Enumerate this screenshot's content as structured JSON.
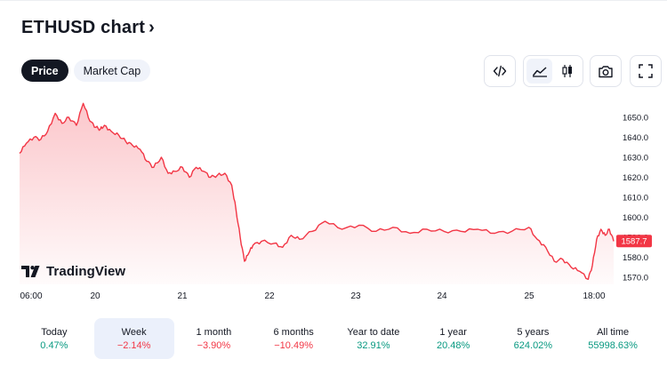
{
  "header": {
    "title": "ETHUSD chart",
    "chevron": "›"
  },
  "tabs": [
    {
      "label": "Price",
      "active": true
    },
    {
      "label": "Market Cap",
      "active": false
    }
  ],
  "toolbar": {
    "icons": [
      "embed-code-icon",
      "line-chart-icon",
      "candlestick-icon",
      "camera-icon",
      "fullscreen-icon"
    ],
    "selected_chart_style": "line-chart-icon"
  },
  "branding": {
    "logo_text": "TradingView"
  },
  "colors": {
    "line": "#f23645",
    "fill_top": "#f23645",
    "last_price_badge": "#f23645",
    "positive": "#089981",
    "negative": "#f23645",
    "active_period_bg": "#ebf0fb"
  },
  "chart_data": {
    "type": "area",
    "symbol": "ETHUSD",
    "x_tick_labels": [
      "06:00",
      "20",
      "21",
      "22",
      "23",
      "24",
      "25",
      "18:00"
    ],
    "y_tick_labels": [
      "1650.0",
      "1640.0",
      "1630.0",
      "1620.0",
      "1610.0",
      "1600.0",
      "1590.0",
      "1580.0",
      "1570.0"
    ],
    "y_range": [
      1566,
      1658
    ],
    "last_price": "1587.7",
    "grid": false,
    "x_days": [
      19.0,
      19.08,
      19.17,
      19.25,
      19.33,
      19.42,
      19.5,
      19.58,
      19.67,
      19.75,
      19.83,
      19.9,
      19.95,
      20.0,
      20.08,
      20.17,
      20.25,
      20.33,
      20.42,
      20.5,
      20.58,
      20.67,
      20.75,
      20.83,
      20.92,
      21.0,
      21.08,
      21.17,
      21.25,
      21.33,
      21.42,
      21.5,
      21.55,
      21.6,
      21.65,
      21.7,
      21.75,
      21.85,
      22.0,
      22.1,
      22.2,
      22.3,
      22.45,
      22.6,
      22.8,
      23.0,
      23.2,
      23.4,
      23.6,
      23.8,
      24.0,
      24.2,
      24.4,
      24.6,
      24.8,
      25.0,
      25.1,
      25.2,
      25.3,
      25.4,
      25.5,
      25.6,
      25.7,
      25.75,
      25.8,
      25.85,
      25.9,
      25.95,
      26.0
    ],
    "values": [
      1632,
      1637,
      1640,
      1639,
      1643,
      1652,
      1647,
      1650,
      1646,
      1657,
      1648,
      1645,
      1644,
      1646,
      1643,
      1641,
      1638,
      1636,
      1634,
      1628,
      1625,
      1630,
      1622,
      1623,
      1625,
      1620,
      1625,
      1623,
      1620,
      1621,
      1622,
      1616,
      1604,
      1590,
      1578,
      1582,
      1586,
      1588,
      1587,
      1585,
      1591,
      1589,
      1593,
      1598,
      1594,
      1596,
      1593,
      1595,
      1592,
      1594,
      1593,
      1593,
      1594,
      1592,
      1593,
      1595,
      1589,
      1585,
      1578,
      1579,
      1575,
      1573,
      1569,
      1576,
      1589,
      1594,
      1591,
      1594,
      1588
    ]
  },
  "periods": [
    {
      "label": "Today",
      "value": "0.47%",
      "trend": "pos",
      "active": false
    },
    {
      "label": "Week",
      "value": "−2.14%",
      "trend": "neg",
      "active": true
    },
    {
      "label": "1 month",
      "value": "−3.90%",
      "trend": "neg",
      "active": false
    },
    {
      "label": "6 months",
      "value": "−10.49%",
      "trend": "neg",
      "active": false
    },
    {
      "label": "Year to date",
      "value": "32.91%",
      "trend": "pos",
      "active": false
    },
    {
      "label": "1 year",
      "value": "20.48%",
      "trend": "pos",
      "active": false
    },
    {
      "label": "5 years",
      "value": "624.02%",
      "trend": "pos",
      "active": false
    },
    {
      "label": "All time",
      "value": "55998.63%",
      "trend": "pos",
      "active": false
    }
  ]
}
